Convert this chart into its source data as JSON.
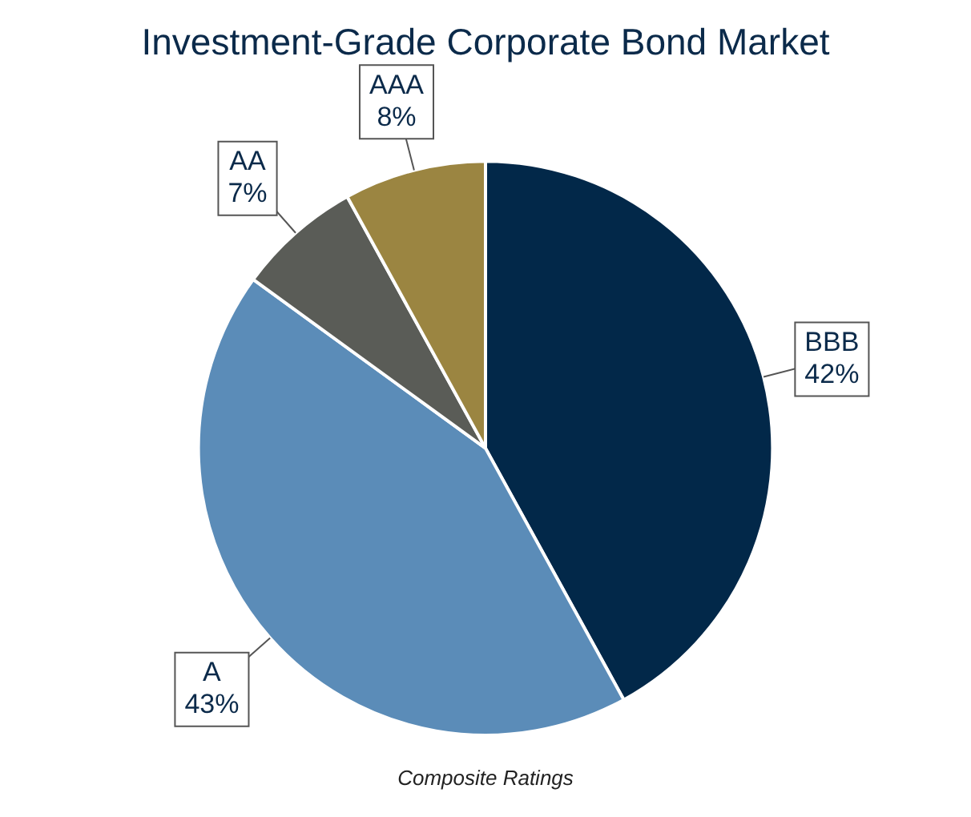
{
  "chart_data": {
    "type": "pie",
    "title": "Investment-Grade Corporate Bond Market",
    "categories": [
      "BBB",
      "A",
      "AA",
      "AAA"
    ],
    "values": [
      42,
      43,
      7,
      8
    ],
    "value_labels": [
      "42%",
      "43%",
      "7%",
      "8%"
    ],
    "colors": [
      "#022849",
      "#5b8cb8",
      "#5a5c57",
      "#9b8541"
    ],
    "annotations": [
      "Composite Ratings"
    ]
  }
}
